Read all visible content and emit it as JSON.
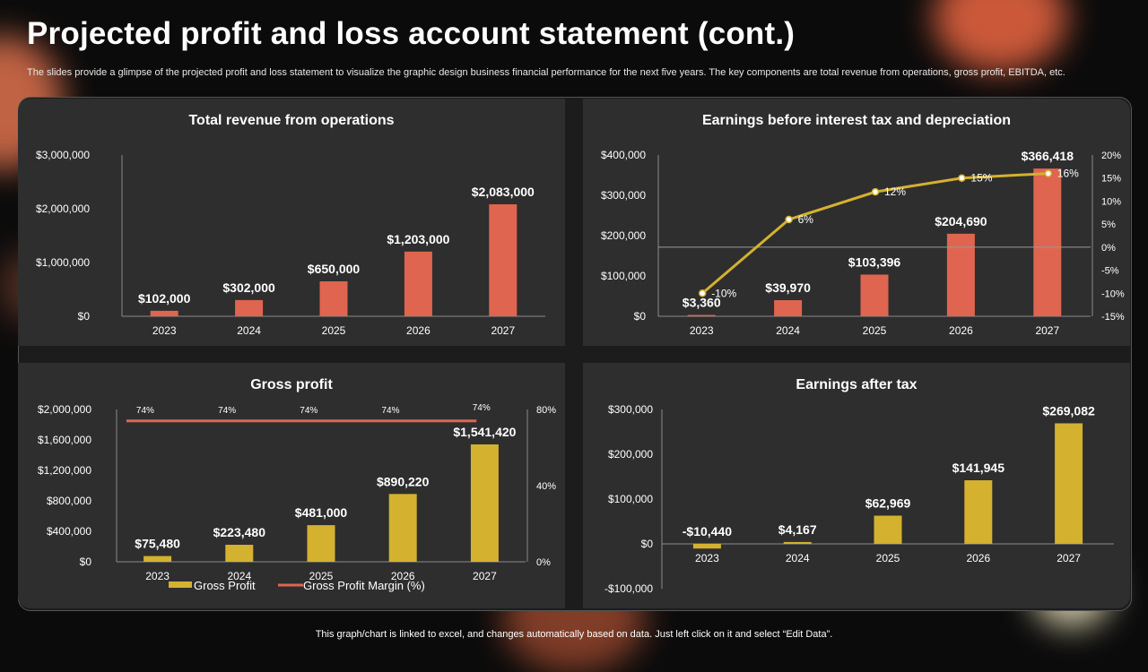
{
  "page": {
    "title": "Projected profit and loss account statement (cont.)",
    "subtitle": "The slides provide a glimpse of the projected profit and loss statement to visualize the graphic design business financial performance for the next five years. The key components are total revenue from operations, gross profit, EBITDA, etc.",
    "footer": "This graph/chart is linked to excel, and changes automatically based on data. Just left click on it and select “Edit Data”."
  },
  "colors": {
    "bar_red": "#df6550",
    "bar_yellow": "#d4b12f",
    "line_yellow": "#d4b12f",
    "line_red": "#df6550"
  },
  "chart_data": [
    {
      "id": "revenue",
      "type": "bar",
      "title": "Total revenue from operations",
      "categories": [
        "2023",
        "2024",
        "2025",
        "2026",
        "2027"
      ],
      "values": [
        102000,
        302000,
        650000,
        1203000,
        2083000
      ],
      "value_labels": [
        "$102,000",
        "$302,000",
        "$650,000",
        "$1,203,000",
        "$2,083,000"
      ],
      "ylim": [
        0,
        3000000
      ],
      "y_ticks": [
        {
          "value": 0,
          "label": "$0"
        },
        {
          "value": 1000000,
          "label": "$1,000,000"
        },
        {
          "value": 2000000,
          "label": "$2,000,000"
        },
        {
          "value": 3000000,
          "label": "$3,000,000"
        }
      ],
      "bar_color": "#df6550"
    },
    {
      "id": "ebitda",
      "type": "bar+line",
      "title": "Earnings before interest tax and depreciation",
      "categories": [
        "2023",
        "2024",
        "2025",
        "2026",
        "2027"
      ],
      "values": [
        3360,
        39970,
        103396,
        204690,
        366418
      ],
      "value_labels": [
        "$3,360",
        "$39,970",
        "$103,396",
        "$204,690",
        "$366,418"
      ],
      "ylim": [
        0,
        400000
      ],
      "y_ticks": [
        {
          "value": 0,
          "label": "$0"
        },
        {
          "value": 100000,
          "label": "$100,000"
        },
        {
          "value": 200000,
          "label": "$200,000"
        },
        {
          "value": 300000,
          "label": "$300,000"
        },
        {
          "value": 400000,
          "label": "$400,000"
        }
      ],
      "line_values": [
        -10,
        6,
        12,
        15,
        16
      ],
      "line_labels": [
        "-10%",
        "6%",
        "12%",
        "15%",
        "16%"
      ],
      "y2lim": [
        -15,
        20
      ],
      "y2_ticks": [
        {
          "value": -15,
          "label": "-15%"
        },
        {
          "value": -10,
          "label": "-10%"
        },
        {
          "value": -5,
          "label": "-5%"
        },
        {
          "value": 0,
          "label": "0%"
        },
        {
          "value": 5,
          "label": "5%"
        },
        {
          "value": 10,
          "label": "10%"
        },
        {
          "value": 15,
          "label": "15%"
        },
        {
          "value": 20,
          "label": "20%"
        }
      ],
      "bar_color": "#df6550",
      "line_color": "#d4b12f"
    },
    {
      "id": "gross",
      "type": "bar+line",
      "title": "Gross profit",
      "categories": [
        "2023",
        "2024",
        "2025",
        "2026",
        "2027"
      ],
      "values": [
        75480,
        223480,
        481000,
        890220,
        1541420
      ],
      "value_labels": [
        "$75,480",
        "$223,480",
        "$481,000",
        "$890,220",
        "$1,541,420"
      ],
      "ylim": [
        0,
        2000000
      ],
      "y_ticks": [
        {
          "value": 0,
          "label": "$0"
        },
        {
          "value": 400000,
          "label": "$400,000"
        },
        {
          "value": 800000,
          "label": "$800,000"
        },
        {
          "value": 1200000,
          "label": "$1,200,000"
        },
        {
          "value": 1600000,
          "label": "$1,600,000"
        },
        {
          "value": 2000000,
          "label": "$2,000,000"
        }
      ],
      "line_values": [
        74,
        74,
        74,
        74,
        74
      ],
      "line_labels": [
        "74%",
        "74%",
        "74%",
        "74%",
        "74%"
      ],
      "y2lim": [
        0,
        80
      ],
      "y2_ticks": [
        {
          "value": 0,
          "label": "0%"
        },
        {
          "value": 40,
          "label": "40%"
        },
        {
          "value": 80,
          "label": "80%"
        }
      ],
      "bar_color": "#d4b12f",
      "line_color": "#df6550",
      "legend": [
        {
          "label": "Gross Profit",
          "kind": "bar",
          "color": "#d4b12f"
        },
        {
          "label": "Gross Profit Margin (%)",
          "kind": "line",
          "color": "#df6550"
        }
      ]
    },
    {
      "id": "eat",
      "type": "bar",
      "title": "Earnings after tax",
      "categories": [
        "2023",
        "2024",
        "2025",
        "2026",
        "2027"
      ],
      "values": [
        -10440,
        4167,
        62969,
        141945,
        269082
      ],
      "value_labels": [
        "-$10,440",
        "$4,167",
        "$62,969",
        "$141,945",
        "$269,082"
      ],
      "ylim": [
        -100000,
        300000
      ],
      "y_ticks": [
        {
          "value": -100000,
          "label": "-$100,000"
        },
        {
          "value": 0,
          "label": "$0"
        },
        {
          "value": 100000,
          "label": "$100,000"
        },
        {
          "value": 200000,
          "label": "$200,000"
        },
        {
          "value": 300000,
          "label": "$300,000"
        }
      ],
      "bar_color": "#d4b12f"
    }
  ]
}
